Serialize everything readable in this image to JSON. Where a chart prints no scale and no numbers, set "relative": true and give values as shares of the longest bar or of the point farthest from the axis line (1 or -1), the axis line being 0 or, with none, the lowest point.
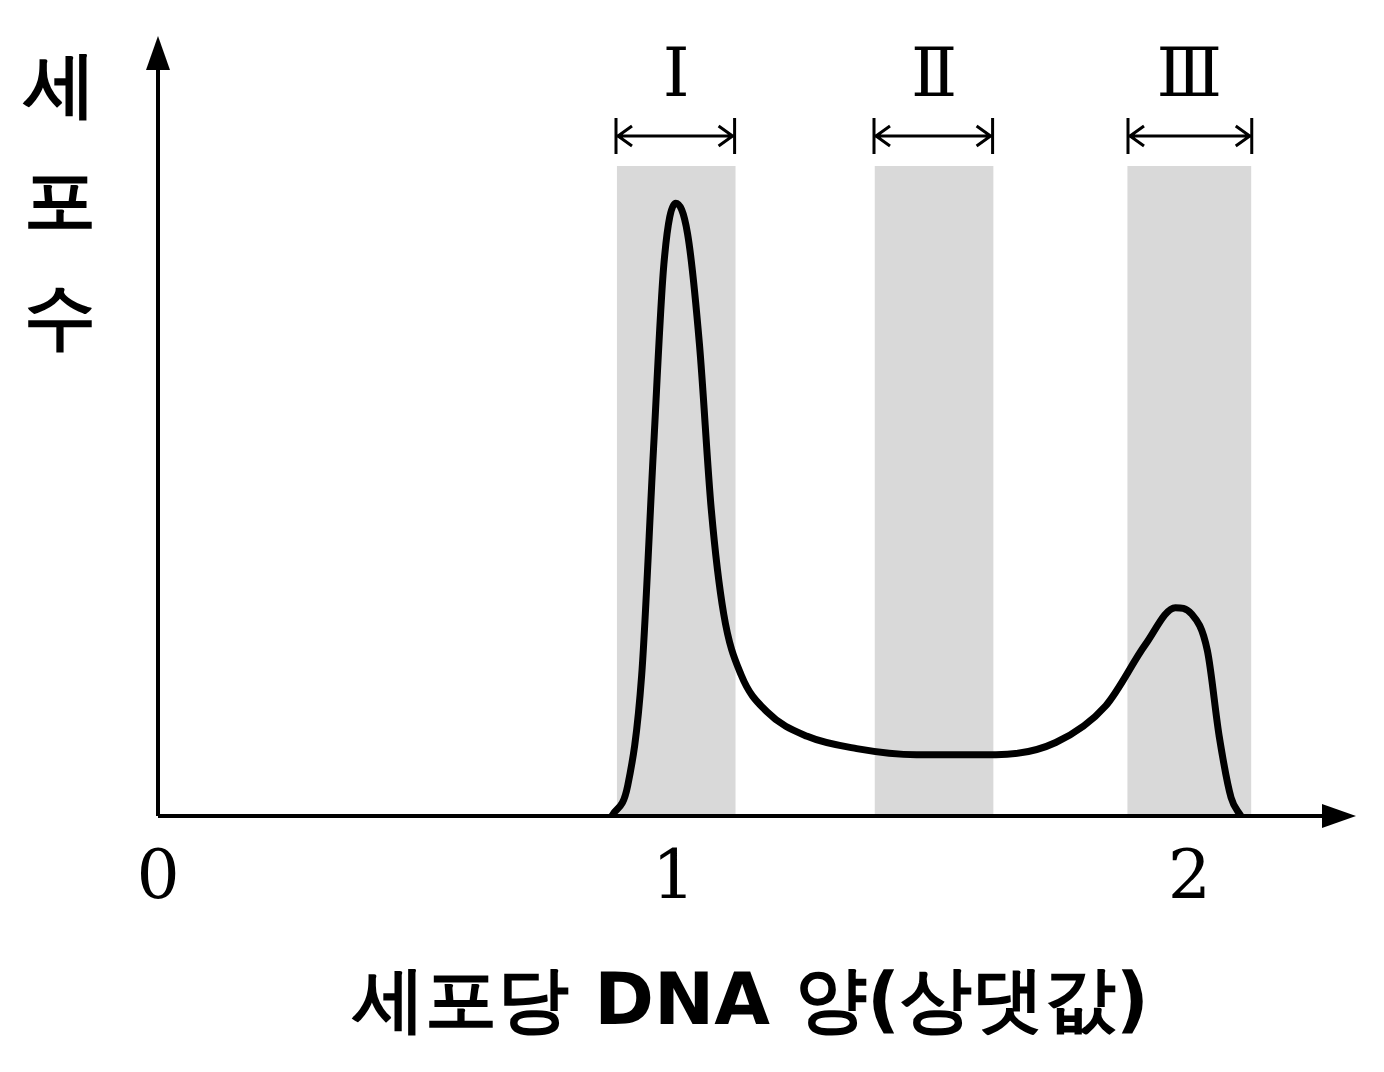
{
  "chart_data": {
    "type": "line",
    "xlabel": "세포당 DNA 양(상댓값)",
    "ylabel": "세포 수",
    "relative": true,
    "xlim": [
      0,
      2.3
    ],
    "xticks": [
      0,
      1,
      2
    ],
    "grid": false,
    "legend": false,
    "marker": "none",
    "line_style": "solid",
    "bands": [
      {
        "axis": "x",
        "from": 0.89,
        "to": 1.12,
        "label": "Ⅰ",
        "color": "#d9d9d9"
      },
      {
        "axis": "x",
        "from": 1.39,
        "to": 1.62,
        "label": "Ⅱ",
        "color": "#d9d9d9"
      },
      {
        "axis": "x",
        "from": 1.88,
        "to": 2.12,
        "label": "Ⅲ",
        "color": "#d9d9d9"
      }
    ],
    "series": [
      {
        "color": "#000000",
        "x": [
          0.88,
          0.911,
          0.938,
          0.961,
          0.981,
          1.004,
          1.027,
          1.05,
          1.073,
          1.097,
          1.131,
          1.181,
          1.259,
          1.355,
          1.471,
          1.625,
          1.741,
          1.838,
          1.915,
          1.973,
          2.004,
          2.035,
          2.058,
          2.081,
          2.1
        ],
        "values": [
          0,
          0.05,
          0.23,
          0.6,
          0.9,
          1,
          0.95,
          0.77,
          0.5,
          0.33,
          0.23,
          0.17,
          0.13,
          0.11,
          0.1,
          0.1,
          0.12,
          0.18,
          0.28,
          0.34,
          0.33,
          0.27,
          0.13,
          0.03,
          0
        ]
      }
    ]
  }
}
